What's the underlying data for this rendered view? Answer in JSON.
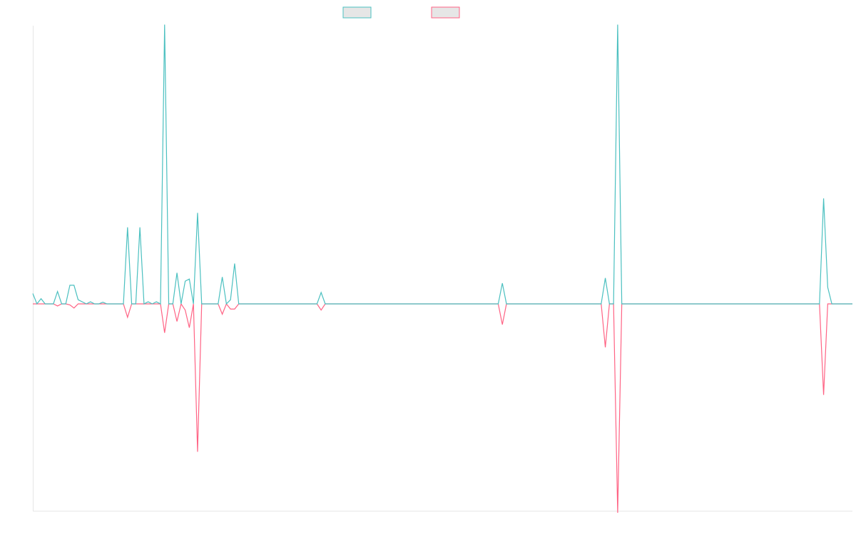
{
  "colors": {
    "series_a": "#4bc0c0",
    "series_b": "#ff6384",
    "legend_fill": "#e6e6e6",
    "axis": "#e6e6e6"
  },
  "chart_data": {
    "type": "line",
    "title": "",
    "xlabel": "",
    "ylabel": "",
    "grid": false,
    "legend_position": "top-center",
    "ylim": [
      -100,
      100
    ],
    "n_points": 200,
    "series": [
      {
        "color": "#4bc0c0",
        "baseline": 0,
        "values_by_index": {
          "0": 5,
          "2": 2.5,
          "6": 6,
          "9": 9,
          "10": 9,
          "11": 2,
          "12": 1,
          "14": 1,
          "17": 0.8,
          "23": 37,
          "26": 37,
          "28": 1,
          "30": 1,
          "32": 135,
          "35": 15,
          "37": 11,
          "38": 12,
          "40": 44,
          "46": 13,
          "48": 2,
          "49": 19.5,
          "70": 5.5,
          "114": 10,
          "139": 12.5,
          "142": 135,
          "192": 51,
          "193": 8
        }
      },
      {
        "color": "#ff6384",
        "baseline": 0,
        "values_by_index": {
          "6": -1,
          "9": -0.5,
          "10": -2,
          "23": -6.5,
          "32": -14,
          "35": -8.5,
          "37": -3,
          "38": -11.5,
          "40": -71.5,
          "46": -5,
          "48": -2.5,
          "49": -2.5,
          "70": -3,
          "114": -10,
          "139": -21,
          "142": -101,
          "192": -44
        }
      }
    ]
  }
}
